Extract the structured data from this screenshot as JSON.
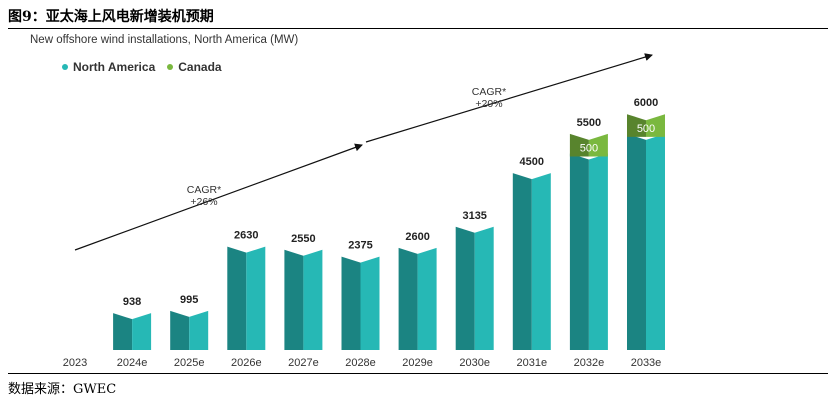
{
  "figure_title": "图9：亚太海上风电新增装机预期",
  "source": "数据来源：GWEC",
  "colors": {
    "north_america": "#26b8b5",
    "canada": "#7ab83f"
  },
  "chart_data": {
    "type": "bar",
    "stacked": true,
    "title": "New offshore wind installations, North America (MW)",
    "legend_position": "top-left",
    "categories": [
      "2023",
      "2024e",
      "2025e",
      "2026e",
      "2027e",
      "2028e",
      "2029e",
      "2030e",
      "2031e",
      "2032e",
      "2033e"
    ],
    "series": [
      {
        "name": "North America",
        "values": [
          0,
          938,
          995,
          2630,
          2550,
          2375,
          2600,
          3135,
          4500,
          5000,
          5500
        ]
      },
      {
        "name": "Canada",
        "values": [
          0,
          0,
          0,
          0,
          0,
          0,
          0,
          0,
          0,
          500,
          500
        ]
      }
    ],
    "totals": [
      "",
      "938",
      "995",
      "2630",
      "2550",
      "2375",
      "2600",
      "3135",
      "4500",
      "5500",
      "6000"
    ],
    "segment_labels": {
      "Canada": [
        "",
        "",
        "",
        "",
        "",
        "",
        "",
        "",
        "",
        "500",
        "500"
      ]
    },
    "annotations": [
      {
        "line1": "CAGR*",
        "line2": "+26%"
      },
      {
        "line1": "CAGR*",
        "line2": "+20%"
      }
    ],
    "ylim": [
      0,
      6000
    ],
    "grid": false
  }
}
